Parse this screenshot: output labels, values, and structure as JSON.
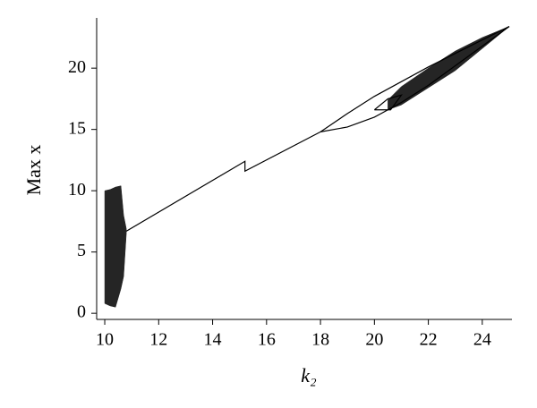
{
  "chart_data": {
    "type": "bifurcation",
    "xlabel": "k₂",
    "ylabel": "Max x",
    "xlim": [
      9.7,
      25.1
    ],
    "ylim": [
      -0.5,
      24.1
    ],
    "xticks": [
      10,
      12,
      14,
      16,
      18,
      20,
      22,
      24
    ],
    "yticks": [
      0,
      5,
      10,
      15,
      20
    ],
    "color": "#000000",
    "series": [
      {
        "x": [
          10.8,
          15.2,
          15.2,
          18.0,
          19.0,
          20.0,
          22.0,
          25.0
        ],
        "values": [
          6.7,
          12.4,
          11.6,
          14.8,
          16.3,
          17.7,
          20.1,
          23.4
        ]
      },
      {
        "x": [
          18.0,
          19.0,
          20.0,
          21.0,
          22.0,
          25.0
        ],
        "values": [
          14.8,
          15.2,
          16.0,
          17.2,
          18.6,
          23.4
        ]
      },
      {
        "x": [
          20.0,
          20.5,
          21.0,
          20.6,
          20.0
        ],
        "values": [
          16.6,
          17.5,
          17.8,
          16.6,
          16.6
        ]
      }
    ],
    "bands": [
      {
        "x": [
          10.0,
          10.2,
          10.4,
          10.6,
          10.7,
          10.8
        ],
        "upper": [
          10.0,
          10.1,
          10.3,
          10.4,
          8.0,
          6.9
        ],
        "lower": [
          0.8,
          0.6,
          0.5,
          2.0,
          3.0,
          6.5
        ]
      },
      {
        "x": [
          20.5,
          21.0,
          22.0,
          23.0,
          24.0,
          25.0
        ],
        "upper": [
          17.4,
          18.5,
          20.0,
          21.4,
          22.5,
          23.4
        ],
        "lower": [
          16.6,
          17.0,
          18.4,
          19.8,
          21.6,
          23.4
        ]
      }
    ]
  }
}
